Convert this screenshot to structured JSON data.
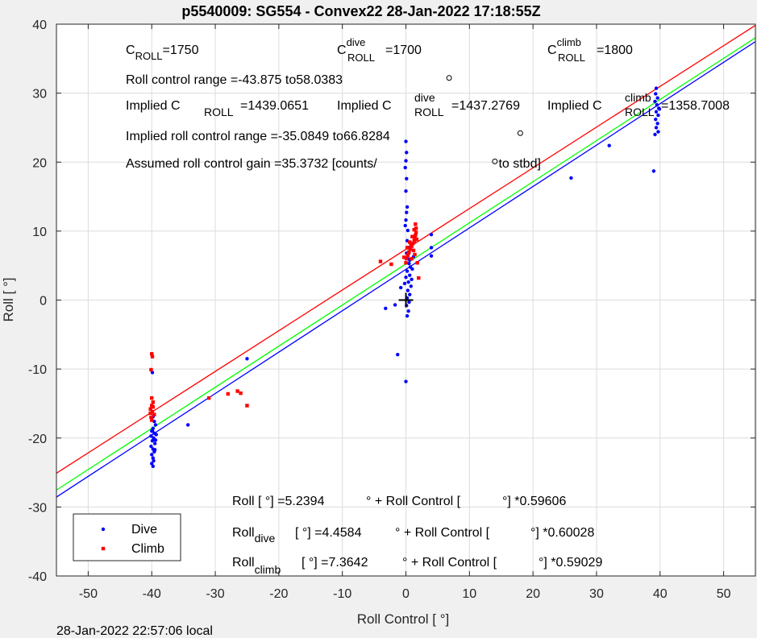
{
  "chart_data": {
    "type": "scatter",
    "title": "p5540009: SG554 - Convex22 28-Jan-2022 17:18:55Z",
    "xlabel": "Roll Control [   °]",
    "ylabel": "Roll [  °]",
    "xlim": [
      -55,
      55
    ],
    "ylim": [
      -40,
      40
    ],
    "xticks": [
      -50,
      -40,
      -30,
      -20,
      -10,
      0,
      10,
      20,
      30,
      40,
      50
    ],
    "yticks": [
      -40,
      -30,
      -20,
      -10,
      0,
      10,
      20,
      30,
      40
    ],
    "grid": true,
    "legend_position": "bottom-left",
    "series": [
      {
        "name": "Dive",
        "color": "#0000ff",
        "points": [
          [
            -39.9,
            -10.5
          ],
          [
            -39.8,
            -16.9
          ],
          [
            -39.6,
            -17.6
          ],
          [
            -39.4,
            -18.1
          ],
          [
            -39.8,
            -18.6
          ],
          [
            -40.0,
            -19.0
          ],
          [
            -39.6,
            -19.3
          ],
          [
            -40.1,
            -19.7
          ],
          [
            -39.7,
            -20.0
          ],
          [
            -39.9,
            -20.4
          ],
          [
            -39.5,
            -20.8
          ],
          [
            -40.1,
            -21.2
          ],
          [
            -39.8,
            -21.6
          ],
          [
            -39.6,
            -22.0
          ],
          [
            -40.0,
            -22.4
          ],
          [
            -39.8,
            -22.9
          ],
          [
            -39.7,
            -23.3
          ],
          [
            -40.0,
            -23.7
          ],
          [
            -39.8,
            -24.1
          ],
          [
            -39.3,
            -19.5
          ],
          [
            -39.5,
            -21.7
          ],
          [
            -39.9,
            -18.9
          ],
          [
            -39.4,
            -20.3
          ],
          [
            -34.3,
            -18.1
          ],
          [
            -25.0,
            -8.5
          ],
          [
            0.0,
            23.0
          ],
          [
            0.1,
            21.4
          ],
          [
            0.0,
            20.2
          ],
          [
            -0.1,
            19.2
          ],
          [
            0.1,
            17.6
          ],
          [
            0.0,
            15.8
          ],
          [
            0.2,
            13.5
          ],
          [
            0.1,
            12.7
          ],
          [
            0.0,
            11.6
          ],
          [
            -0.1,
            10.8
          ],
          [
            0.3,
            10.1
          ],
          [
            0.2,
            8.6
          ],
          [
            0.4,
            7.6
          ],
          [
            0.1,
            6.8
          ],
          [
            0.3,
            6.0
          ],
          [
            0.5,
            5.3
          ],
          [
            0.7,
            4.8
          ],
          [
            0.2,
            4.2
          ],
          [
            0.6,
            3.6
          ],
          [
            0.9,
            3.0
          ],
          [
            0.4,
            2.6
          ],
          [
            0.8,
            2.0
          ],
          [
            0.3,
            1.4
          ],
          [
            0.6,
            0.8
          ],
          [
            0.2,
            0.3
          ],
          [
            0.5,
            -0.3
          ],
          [
            0.1,
            -0.8
          ],
          [
            0.4,
            -1.6
          ],
          [
            0.2,
            -2.3
          ],
          [
            0.6,
            5.8
          ],
          [
            1.0,
            4.5
          ],
          [
            0.0,
            3.3
          ],
          [
            -0.2,
            2.4
          ],
          [
            1.2,
            6.3
          ],
          [
            -1.3,
            -7.9
          ],
          [
            0.0,
            -11.8
          ],
          [
            -3.2,
            -1.2
          ],
          [
            -1.7,
            -0.7
          ],
          [
            -0.8,
            1.8
          ],
          [
            4.0,
            9.5
          ],
          [
            4.0,
            7.6
          ],
          [
            4.0,
            6.4
          ],
          [
            26.0,
            17.7
          ],
          [
            32.0,
            22.4
          ],
          [
            39.0,
            18.7
          ],
          [
            39.4,
            30.7
          ],
          [
            39.3,
            29.9
          ],
          [
            39.6,
            29.3
          ],
          [
            39.2,
            28.8
          ],
          [
            39.5,
            28.3
          ],
          [
            39.8,
            27.8
          ],
          [
            39.4,
            27.3
          ],
          [
            39.7,
            26.8
          ],
          [
            39.3,
            26.2
          ],
          [
            39.6,
            25.6
          ],
          [
            39.4,
            25.0
          ],
          [
            39.7,
            24.4
          ],
          [
            39.2,
            24.0
          ],
          [
            39.9,
            27.7
          ]
        ]
      },
      {
        "name": "Climb",
        "color": "#ff0000",
        "points": [
          [
            -40.0,
            -7.8
          ],
          [
            -39.9,
            -8.2
          ],
          [
            -40.1,
            -10.1
          ],
          [
            -40.0,
            -14.2
          ],
          [
            -39.8,
            -14.8
          ],
          [
            -40.0,
            -15.3
          ],
          [
            -40.2,
            -15.8
          ],
          [
            -39.9,
            -16.2
          ],
          [
            -39.6,
            -16.6
          ],
          [
            -40.1,
            -17.0
          ],
          [
            -40.0,
            -17.4
          ],
          [
            -39.8,
            -15.5
          ],
          [
            -40.2,
            -16.4
          ],
          [
            -31.0,
            -14.2
          ],
          [
            -28.0,
            -13.6
          ],
          [
            -26.5,
            -13.2
          ],
          [
            -26.0,
            -13.5
          ],
          [
            -25.0,
            -15.3
          ],
          [
            -4.0,
            5.6
          ],
          [
            -2.3,
            5.2
          ],
          [
            0.1,
            6.0
          ],
          [
            0.3,
            6.5
          ],
          [
            0.5,
            7.0
          ],
          [
            0.7,
            7.4
          ],
          [
            0.9,
            7.8
          ],
          [
            1.1,
            8.2
          ],
          [
            1.3,
            8.6
          ],
          [
            1.4,
            9.0
          ],
          [
            1.5,
            9.4
          ],
          [
            1.6,
            9.8
          ],
          [
            1.6,
            10.4
          ],
          [
            1.5,
            11.0
          ],
          [
            0.2,
            7.6
          ],
          [
            0.6,
            8.4
          ],
          [
            1.0,
            9.2
          ],
          [
            0.4,
            6.8
          ],
          [
            0.8,
            8.0
          ],
          [
            1.2,
            7.2
          ],
          [
            1.7,
            8.8
          ],
          [
            0.0,
            5.4
          ],
          [
            -0.3,
            6.2
          ],
          [
            1.3,
            10.2
          ],
          [
            2.0,
            3.2
          ],
          [
            1.8,
            5.4
          ],
          [
            0.9,
            6.0
          ],
          [
            1.4,
            6.6
          ]
        ]
      }
    ],
    "fit_lines": [
      {
        "name": "combined",
        "color": "#00ff00",
        "intercept": 5.2394,
        "slope": 0.59606
      },
      {
        "name": "dive",
        "color": "#0000ff",
        "intercept": 4.4584,
        "slope": 0.60028
      },
      {
        "name": "climb",
        "color": "#ff0000",
        "intercept": 7.3642,
        "slope": 0.59029
      }
    ],
    "markers": [
      {
        "type": "plus",
        "color": "#000000",
        "x": 0,
        "y": 0
      },
      {
        "type": "circle",
        "color": "#000000",
        "x": 6.8,
        "y": 32.2
      },
      {
        "type": "circle",
        "color": "#000000",
        "x": 18.0,
        "y": 24.2
      },
      {
        "type": "circle",
        "color": "#000000",
        "x": 14.0,
        "y": 20.1
      }
    ],
    "annotations": {
      "c_roll": {
        "sym": "C",
        "sub": "ROLL",
        "val": "=1750"
      },
      "c_roll_dive": {
        "sym": "C",
        "sup": "dive",
        "sub": "ROLL",
        "val": "=1700"
      },
      "c_roll_climb": {
        "sym": "C",
        "sup": "climb",
        "sub": "ROLL",
        "val": "=1800"
      },
      "roll_range": "Roll control range =-43.875 to58.0383",
      "implied_prefix": "Implied C",
      "implied_c_roll_sub": "ROLL",
      "implied_c_roll_val": "=1439.0651",
      "implied_dive_sup": "dive",
      "implied_dive_sub": "ROLL",
      "implied_dive_val": "=1437.2769",
      "implied_climb_sup": "climb",
      "implied_climb_sub": "ROLL",
      "implied_climb_val": "=1358.7008",
      "implied_range": "Implied roll control range =-35.0849 to66.8284",
      "gain_prefix": "Assumed roll control gain =35.3732 [counts/",
      "gain_suffix": " to stbd]",
      "eq_all_a": "Roll [  °] =5.2394",
      "eq_all_b": "° + Roll Control [",
      "eq_all_c": "°] *0.59606",
      "eq_dive_roll": "Roll",
      "eq_dive_sub": "dive",
      "eq_dive_a": "[  °] =4.4584",
      "eq_dive_b": "° + Roll Control [",
      "eq_dive_c": "°] *0.60028",
      "eq_climb_roll": "Roll",
      "eq_climb_sub": "climb",
      "eq_climb_a": "[  °] =7.3642",
      "eq_climb_b": "° + Roll Control [",
      "eq_climb_c": "°] *0.59029"
    }
  },
  "footer": {
    "timestamp": "28-Jan-2022 22:57:06 local"
  }
}
